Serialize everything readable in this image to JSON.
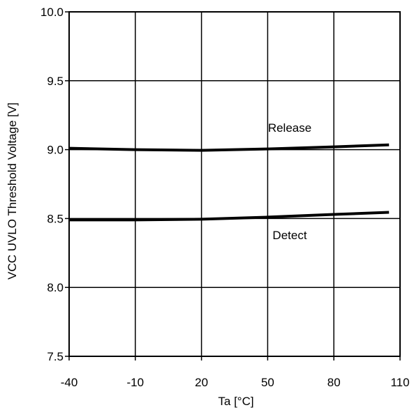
{
  "chart_data": {
    "type": "line",
    "xlabel": "Ta [°C]",
    "ylabel": "VCC UVLO Threshold Voltage [V]",
    "xlim": [
      -40,
      110
    ],
    "ylim": [
      7.5,
      10.0
    ],
    "xticks": [
      -40,
      -10,
      20,
      50,
      80,
      110
    ],
    "yticks": [
      7.5,
      8.0,
      8.5,
      9.0,
      9.5,
      10.0
    ],
    "xtick_labels": [
      "-40",
      "-10",
      "20",
      "50",
      "80",
      "110"
    ],
    "ytick_labels": [
      "7.5",
      "8.0",
      "8.5",
      "9.0",
      "9.5",
      "10.0"
    ],
    "grid": true,
    "legend": "none",
    "line_color": "#000000",
    "series": [
      {
        "name": "Release",
        "x": [
          -40,
          -10,
          20,
          50,
          80,
          105
        ],
        "y": [
          9.01,
          9.0,
          8.995,
          9.005,
          9.02,
          9.035
        ]
      },
      {
        "name": "Detect",
        "x": [
          -40,
          -10,
          20,
          50,
          80,
          105
        ],
        "y": [
          8.49,
          8.49,
          8.495,
          8.51,
          8.53,
          8.545
        ]
      }
    ]
  }
}
